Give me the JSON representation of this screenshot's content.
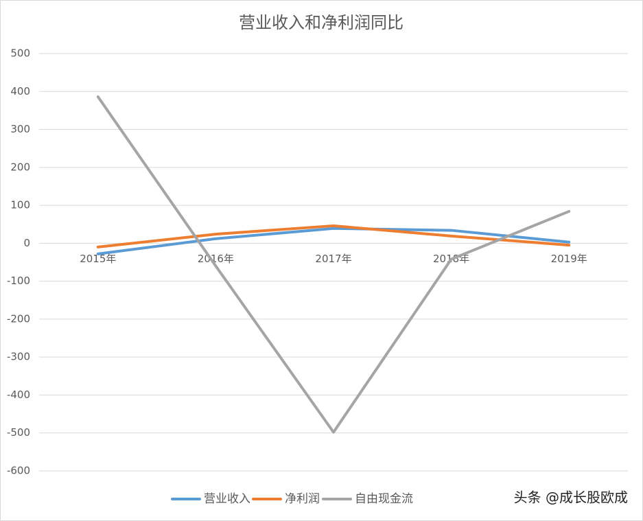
{
  "chart_data": {
    "type": "line",
    "title": "营业收入和净利润同比",
    "categories": [
      "2015年",
      "2016年",
      "2017年",
      "2018年",
      "2019年"
    ],
    "series": [
      {
        "name": "营业收入",
        "color": "#5b9bd5",
        "values": [
          -28,
          12,
          39,
          34,
          3
        ]
      },
      {
        "name": "净利润",
        "color": "#ed7d31",
        "values": [
          -10,
          24,
          46,
          19,
          -5
        ]
      },
      {
        "name": "自由现金流",
        "color": "#a5a5a5",
        "values": [
          386,
          -60,
          -498,
          -42,
          84
        ]
      }
    ],
    "ylim": [
      -600,
      500
    ],
    "yticks": [
      -600,
      -500,
      -400,
      -300,
      -200,
      -100,
      0,
      100,
      200,
      300,
      400,
      500
    ],
    "grid": true,
    "legend": "bottom"
  },
  "watermark": "头条 @成长股欧成"
}
